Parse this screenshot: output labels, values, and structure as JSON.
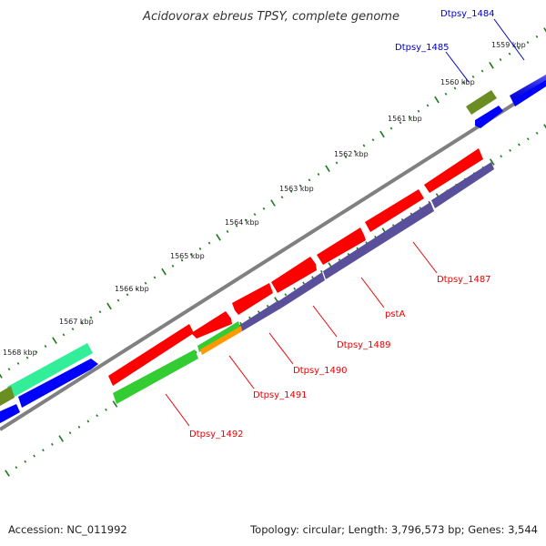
{
  "title": "Acidovorax ebreus TPSY, complete genome",
  "footer": {
    "accession": "Accession: NC_011992",
    "topology": "Topology: circular; Length: 3,796,573 bp; Genes: 3,544"
  },
  "colors": {
    "backbone": "#808080",
    "tick": "#1a7a1a",
    "red": "#ff0000",
    "blue": "#0000ff",
    "purple": "#5a4f9a",
    "olive": "#6b8e23",
    "green": "#33cc33",
    "seagreen": "#33ee99",
    "orange": "#ff9900",
    "labelForward": "#0000cc",
    "labelReverse": "#ee0000"
  },
  "ticks": {
    "labels": [
      "1559 kbp",
      "1560 kbp",
      "1561 kbp",
      "1562 kbp",
      "1563 kbp",
      "1564 kbp",
      "1565 kbp",
      "1566 kbp",
      "1567 kbp",
      "1568 kbp"
    ]
  },
  "genes": [
    {
      "name": "Dtpsy_1484",
      "strand": "forward",
      "color": "blue"
    },
    {
      "name": "Dtpsy_1485",
      "strand": "forward",
      "color": "blue"
    },
    {
      "name": "Dtpsy_1487",
      "strand": "reverse",
      "color": "red"
    },
    {
      "name": "pstA",
      "strand": "reverse",
      "color": "purple"
    },
    {
      "name": "Dtpsy_1489",
      "strand": "reverse",
      "color": "purple"
    },
    {
      "name": "Dtpsy_1490",
      "strand": "reverse",
      "color": "purple"
    },
    {
      "name": "Dtpsy_1491",
      "strand": "reverse",
      "color": "orange"
    },
    {
      "name": "Dtpsy_1492",
      "strand": "reverse",
      "color": "green"
    }
  ]
}
